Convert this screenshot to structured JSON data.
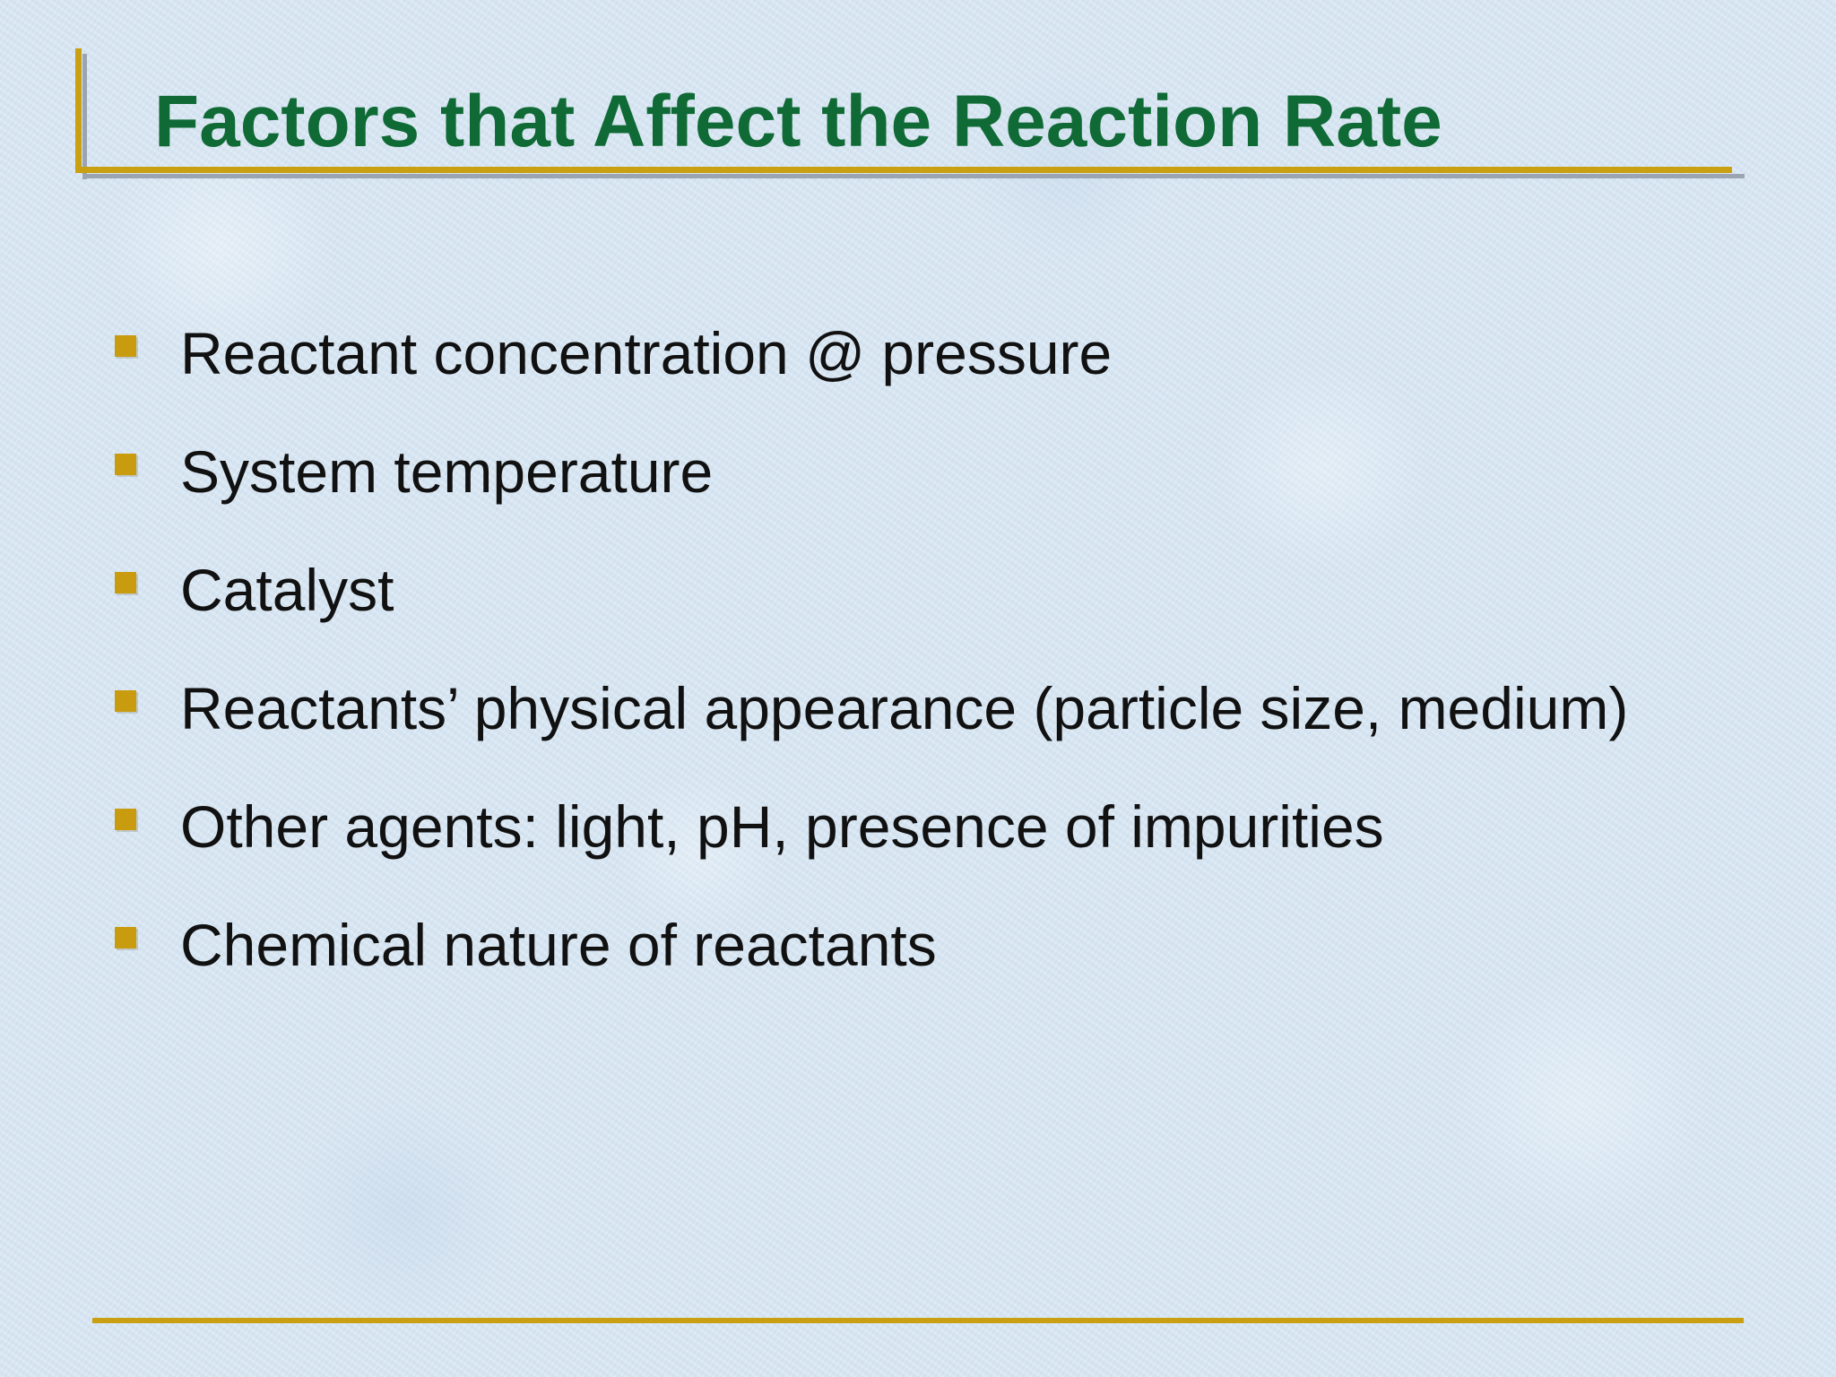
{
  "slide": {
    "title": "Factors that Affect the Reaction Rate",
    "bullets": [
      {
        "text": "Reactant concentration @ pressure"
      },
      {
        "text": "System temperature"
      },
      {
        "text": "Catalyst"
      },
      {
        "text": "Reactants’ physical appearance (particle size, medium)"
      },
      {
        "text": "Other agents: light, pH, presence of impurities"
      },
      {
        "text": "Chemical nature of reactants"
      }
    ]
  },
  "colors": {
    "title": "#0f6a35",
    "accent_gold": "#c9a011",
    "bullet_marker": "#c99b0e",
    "background": "#d9e7f3",
    "body_text": "#111111"
  },
  "icons": {
    "bullet": "square-bullet-icon"
  }
}
